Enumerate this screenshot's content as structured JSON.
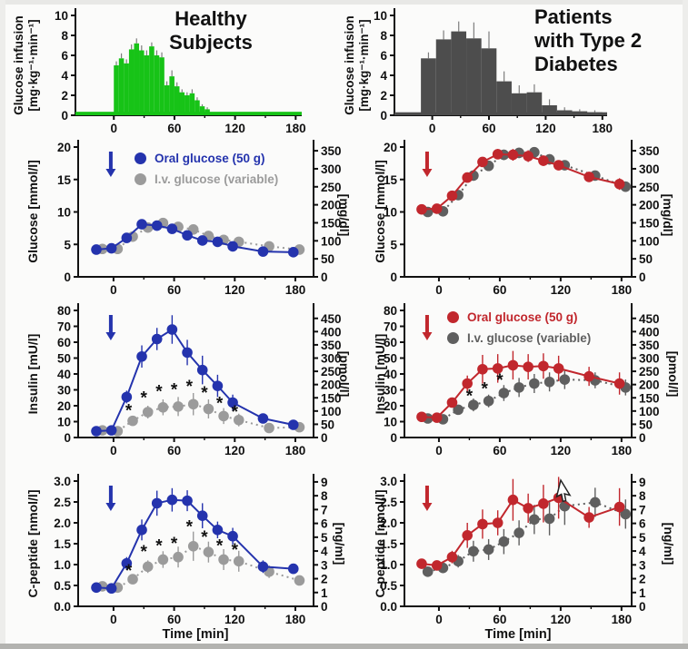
{
  "figure": {
    "left_title": "Healthy\nSubjects",
    "right_title": "Patients\nwith Type 2\nDiabetes",
    "time_axis_label": "Time [min]",
    "colors": {
      "healthy_infusion_green": "#17c317",
      "t2d_infusion_gray": "#4d4d4d",
      "oral_blue": "#2433ad",
      "iv_light_gray": "#9b9b9b",
      "oral_red": "#c1272d",
      "iv_dark_gray": "#5f5f5f",
      "axis_black": "#111111"
    }
  },
  "chart_data": [
    {
      "id": "infusion-healthy",
      "type": "histogram",
      "title": "Healthy Subjects",
      "ylabel": "Glucose infusion\n[mg·kg⁻¹·min⁻¹]",
      "color": "#17c317",
      "bin_start": 0,
      "bin_width": 5,
      "values": [
        5.0,
        5.7,
        5.2,
        6.6,
        7.2,
        6.5,
        6.0,
        6.9,
        6.0,
        5.8,
        3.0,
        3.9,
        2.9,
        2.3,
        2.0,
        2.2,
        1.5,
        0.9,
        0.6
      ],
      "errors": [
        0.4,
        0.5,
        0.4,
        0.5,
        0.5,
        0.5,
        0.5,
        0.4,
        0.5,
        0.5,
        0.4,
        0.6,
        0.4,
        0.3,
        0.3,
        0.4,
        0.3,
        0.2,
        0.2
      ],
      "baseline": {
        "from": -38,
        "to": 186,
        "value": 0.35
      },
      "xlim": [
        -38,
        186
      ],
      "ylim": [
        0,
        10
      ],
      "xticks": [
        0,
        60,
        120,
        180
      ],
      "xminor": [
        30,
        90,
        150
      ],
      "yticks": [
        0,
        2,
        4,
        6,
        8,
        10
      ]
    },
    {
      "id": "infusion-t2d",
      "type": "histogram",
      "title": "Patients with Type 2 Diabetes",
      "ylabel": "Glucose infusion\n[mg·kg⁻¹·min⁻¹]",
      "color": "#4d4d4d",
      "bin_start": -12,
      "bin_width": 16,
      "values": [
        5.7,
        7.6,
        8.4,
        7.7,
        6.7,
        3.4,
        2.2,
        2.3,
        1.0,
        0.5,
        0.4,
        0.3
      ],
      "errors": [
        0.6,
        0.9,
        1.0,
        1.6,
        1.7,
        1.0,
        0.8,
        0.8,
        0.6,
        0.3,
        0.2,
        0.2
      ],
      "baseline": {
        "from": -40,
        "to": 185,
        "value": 0.3
      },
      "xlim": [
        -40,
        185
      ],
      "ylim": [
        0,
        10
      ],
      "xticks": [
        0,
        60,
        120,
        180
      ],
      "xminor": [
        30,
        90,
        150
      ],
      "yticks": [
        0,
        2,
        4,
        6,
        8,
        10
      ]
    },
    {
      "id": "glucose-healthy",
      "type": "line",
      "ylabel": "Glucose [mmol/l]",
      "right_axis": {
        "label": "[mg/dl]",
        "ticks": [
          0,
          50,
          100,
          150,
          200,
          250,
          300,
          350
        ],
        "factor": 18.016
      },
      "xlim": [
        -35,
        198
      ],
      "ylim": [
        0,
        20
      ],
      "xticks": [
        0,
        60,
        120,
        180
      ],
      "xminor": [
        30,
        90,
        150
      ],
      "yticks": [
        0,
        5,
        10,
        15,
        20
      ],
      "ytick_decimals": 0,
      "arrow_color": "#2433ad",
      "legend": true,
      "x": [
        -15,
        0,
        15,
        30,
        45,
        60,
        75,
        90,
        105,
        120,
        150,
        180
      ],
      "series": [
        {
          "name": "Oral glucose (50 g)",
          "color": "#2433ad",
          "dash": false,
          "dx": -2,
          "values": [
            4.2,
            4.4,
            6.0,
            8.1,
            7.9,
            7.4,
            6.4,
            5.6,
            5.4,
            4.7,
            3.9,
            3.8
          ],
          "errors": [
            0.2,
            0.2,
            0.3,
            0.4,
            0.4,
            0.4,
            0.4,
            0.3,
            0.3,
            0.3,
            0.25,
            0.25
          ]
        },
        {
          "name": "I.v. glucose (variable)",
          "color": "#9b9b9b",
          "dash": true,
          "dx": 4,
          "values": [
            4.3,
            4.3,
            6.2,
            7.6,
            8.3,
            7.7,
            7.3,
            6.3,
            5.7,
            5.4,
            4.7,
            4.2
          ],
          "errors": [
            0.2,
            0.2,
            0.3,
            0.4,
            0.4,
            0.4,
            0.4,
            0.3,
            0.3,
            0.3,
            0.25,
            0.25
          ]
        }
      ]
    },
    {
      "id": "glucose-t2d",
      "type": "line",
      "ylabel": "Glucose [mmol/l]",
      "right_axis": {
        "label": "[mg/dl]",
        "ticks": [
          0,
          50,
          100,
          150,
          200,
          250,
          300,
          350
        ],
        "factor": 18.016
      },
      "xlim": [
        -34,
        190
      ],
      "ylim": [
        0,
        20
      ],
      "xticks": [
        0,
        60,
        120,
        180
      ],
      "xminor": [
        30,
        90,
        150
      ],
      "yticks": [
        0,
        5,
        10,
        15,
        20
      ],
      "ytick_decimals": 0,
      "arrow_color": "#c1272d",
      "legend": false,
      "x": [
        -15,
        0,
        15,
        30,
        45,
        60,
        75,
        90,
        105,
        120,
        150,
        180
      ],
      "series": [
        {
          "name": "Oral glucose (50 g)",
          "color": "#c1272d",
          "dash": false,
          "dx": -2,
          "values": [
            10.4,
            10.5,
            12.5,
            15.3,
            17.7,
            18.9,
            18.8,
            18.6,
            17.9,
            17.2,
            15.4,
            14.3
          ],
          "errors": [
            0.5,
            0.5,
            0.5,
            0.6,
            0.7,
            0.8,
            0.9,
            0.9,
            0.8,
            0.7,
            0.7,
            0.9
          ]
        },
        {
          "name": "I.v. glucose (variable)",
          "color": "#5f5f5f",
          "dash": true,
          "dx": 4,
          "values": [
            10.0,
            10.1,
            12.6,
            15.6,
            17.1,
            18.8,
            19.1,
            19.2,
            18.1,
            17.2,
            15.6,
            13.9
          ],
          "errors": [
            0.4,
            0.4,
            0.5,
            0.6,
            0.7,
            0.8,
            0.8,
            0.8,
            0.8,
            0.7,
            0.7,
            0.8
          ]
        }
      ]
    },
    {
      "id": "insulin-healthy",
      "type": "line",
      "ylabel": "Insulin [mU/l]",
      "right_axis": {
        "label": "[pmol/l]",
        "ticks": [
          0,
          50,
          100,
          150,
          200,
          250,
          300,
          350,
          400,
          450
        ],
        "factor": 6.0
      },
      "xlim": [
        -35,
        198
      ],
      "ylim": [
        0,
        80
      ],
      "xticks": [
        0,
        60,
        120,
        180
      ],
      "xminor": [
        30,
        90,
        150
      ],
      "yticks": [
        0,
        10,
        20,
        30,
        40,
        50,
        60,
        70,
        80
      ],
      "ytick_decimals": 0,
      "arrow_color": "#2433ad",
      "legend": false,
      "x": [
        -15,
        0,
        15,
        30,
        45,
        60,
        75,
        90,
        105,
        120,
        150,
        180
      ],
      "series": [
        {
          "name": "Oral glucose (50 g)",
          "color": "#2433ad",
          "dash": false,
          "dx": -2,
          "values": [
            4,
            4.5,
            25.5,
            51,
            62,
            68,
            53.5,
            42.5,
            32.5,
            22,
            12,
            8
          ],
          "errors": [
            1,
            1,
            4,
            7,
            7,
            9,
            8,
            9,
            7,
            5,
            3,
            2
          ]
        },
        {
          "name": "I.v. glucose (variable)",
          "color": "#9b9b9b",
          "dash": true,
          "dx": 4,
          "values": [
            4.5,
            4,
            10.5,
            16,
            19,
            19.5,
            21,
            18,
            13.5,
            11,
            6,
            6.5
          ],
          "errors": [
            1,
            1,
            3,
            4,
            5,
            6,
            7,
            6,
            5,
            4,
            2,
            2
          ]
        }
      ],
      "asterisks": {
        "x": [
          15,
          30,
          45,
          60,
          75,
          90,
          105,
          120
        ],
        "y": [
          17,
          25,
          29,
          30,
          32,
          28,
          21.5,
          16
        ]
      }
    },
    {
      "id": "insulin-t2d",
      "type": "line",
      "ylabel": "Insulin [mU/l]",
      "right_axis": {
        "label": "[pmol/l]",
        "ticks": [
          0,
          50,
          100,
          150,
          200,
          250,
          300,
          350,
          400,
          450
        ],
        "factor": 6.0
      },
      "xlim": [
        -34,
        190
      ],
      "ylim": [
        0,
        80
      ],
      "xticks": [
        0,
        60,
        120,
        180
      ],
      "xminor": [
        30,
        90,
        150
      ],
      "yticks": [
        0,
        10,
        20,
        30,
        40,
        50,
        60,
        70,
        80
      ],
      "ytick_decimals": 0,
      "arrow_color": "#c1272d",
      "legend": true,
      "x": [
        -15,
        0,
        15,
        30,
        45,
        60,
        75,
        90,
        105,
        120,
        150,
        180
      ],
      "series": [
        {
          "name": "Oral glucose (50 g)",
          "color": "#c1272d",
          "dash": false,
          "dx": -2,
          "values": [
            13,
            12.5,
            22,
            34,
            43,
            43.5,
            45.5,
            44.5,
            45,
            43.5,
            38.5,
            34
          ],
          "errors": [
            2,
            2,
            3,
            5,
            9,
            9,
            9,
            8,
            8,
            8,
            6,
            7
          ]
        },
        {
          "name": "I.v. glucose (variable)",
          "color": "#5f5f5f",
          "dash": true,
          "dx": 4,
          "values": [
            12,
            11.5,
            17.5,
            20.5,
            23,
            28,
            31.5,
            34,
            35,
            36.5,
            36,
            31.5
          ],
          "errors": [
            2,
            2,
            3,
            4,
            4,
            5,
            6,
            6,
            6,
            6,
            5,
            5
          ]
        }
      ],
      "asterisks": {
        "x": [
          30,
          45,
          60
        ],
        "y": [
          26,
          30.5,
          36
        ]
      }
    },
    {
      "id": "cpeptide-healthy",
      "type": "line",
      "ylabel": "C-peptide [nmol/l]",
      "xlabel": "Time [min]",
      "right_axis": {
        "label": "[ng/ml]",
        "ticks": [
          0,
          1,
          2,
          3,
          4,
          5,
          6,
          7,
          8,
          9
        ],
        "factor": 3.02
      },
      "xlim": [
        -35,
        198
      ],
      "ylim": [
        0,
        3
      ],
      "xticks": [
        0,
        60,
        120,
        180
      ],
      "xminor": [
        30,
        90,
        150
      ],
      "yticks": [
        0,
        0.5,
        1,
        1.5,
        2,
        2.5,
        3
      ],
      "ytick_decimals": 1,
      "arrow_color": "#2433ad",
      "legend": false,
      "x": [
        -15,
        0,
        15,
        30,
        45,
        60,
        75,
        90,
        105,
        120,
        150,
        180
      ],
      "series": [
        {
          "name": "Oral glucose (50 g)",
          "color": "#2433ad",
          "dash": false,
          "dx": -2,
          "values": [
            0.45,
            0.43,
            1.03,
            1.83,
            2.47,
            2.55,
            2.53,
            2.17,
            1.83,
            1.68,
            0.95,
            0.9
          ],
          "errors": [
            0.07,
            0.07,
            0.15,
            0.25,
            0.3,
            0.28,
            0.25,
            0.3,
            0.2,
            0.2,
            0.15,
            0.12
          ]
        },
        {
          "name": "I.v. glucose (variable)",
          "color": "#9b9b9b",
          "dash": true,
          "dx": 4,
          "values": [
            0.48,
            0.45,
            0.65,
            0.95,
            1.12,
            1.18,
            1.44,
            1.3,
            1.12,
            1.08,
            0.83,
            0.62
          ],
          "errors": [
            0.07,
            0.07,
            0.1,
            0.15,
            0.2,
            0.25,
            0.35,
            0.25,
            0.25,
            0.25,
            0.15,
            0.1
          ]
        }
      ],
      "asterisks": {
        "x": [
          15,
          30,
          45,
          60,
          75,
          90,
          105,
          120
        ],
        "y": [
          0.85,
          1.3,
          1.45,
          1.5,
          1.9,
          1.65,
          1.45,
          1.35
        ]
      }
    },
    {
      "id": "cpeptide-t2d",
      "type": "line",
      "ylabel": "C-peptide [nmol/l]",
      "xlabel": "Time [min]",
      "right_axis": {
        "label": "[ng/ml]",
        "ticks": [
          0,
          1,
          2,
          3,
          4,
          5,
          6,
          7,
          8,
          9
        ],
        "factor": 3.02
      },
      "xlim": [
        -34,
        190
      ],
      "ylim": [
        0,
        3
      ],
      "xticks": [
        0,
        60,
        120,
        180
      ],
      "xminor": [
        30,
        90,
        150
      ],
      "yticks": [
        0,
        0.5,
        1,
        1.5,
        2,
        2.5,
        3
      ],
      "ytick_decimals": 1,
      "arrow_color": "#c1272d",
      "legend": false,
      "x": [
        -15,
        0,
        15,
        30,
        45,
        60,
        75,
        90,
        105,
        120,
        150,
        180
      ],
      "series": [
        {
          "name": "Oral glucose (50 g)",
          "color": "#c1272d",
          "dash": false,
          "dx": -2,
          "values": [
            1.02,
            0.98,
            1.18,
            1.7,
            1.97,
            2.0,
            2.55,
            2.35,
            2.46,
            2.6,
            2.13,
            2.38
          ],
          "errors": [
            0.12,
            0.12,
            0.15,
            0.3,
            0.35,
            0.3,
            0.5,
            0.35,
            0.45,
            0.5,
            0.25,
            0.45
          ]
        },
        {
          "name": "I.v. glucose (variable)",
          "color": "#5f5f5f",
          "dash": true,
          "dx": 4,
          "values": [
            0.83,
            0.92,
            1.08,
            1.32,
            1.36,
            1.55,
            1.76,
            2.08,
            2.1,
            2.4,
            2.49,
            2.21
          ],
          "errors": [
            0.1,
            0.1,
            0.15,
            0.25,
            0.25,
            0.3,
            0.3,
            0.35,
            0.4,
            0.45,
            0.35,
            0.35
          ]
        }
      ]
    }
  ]
}
